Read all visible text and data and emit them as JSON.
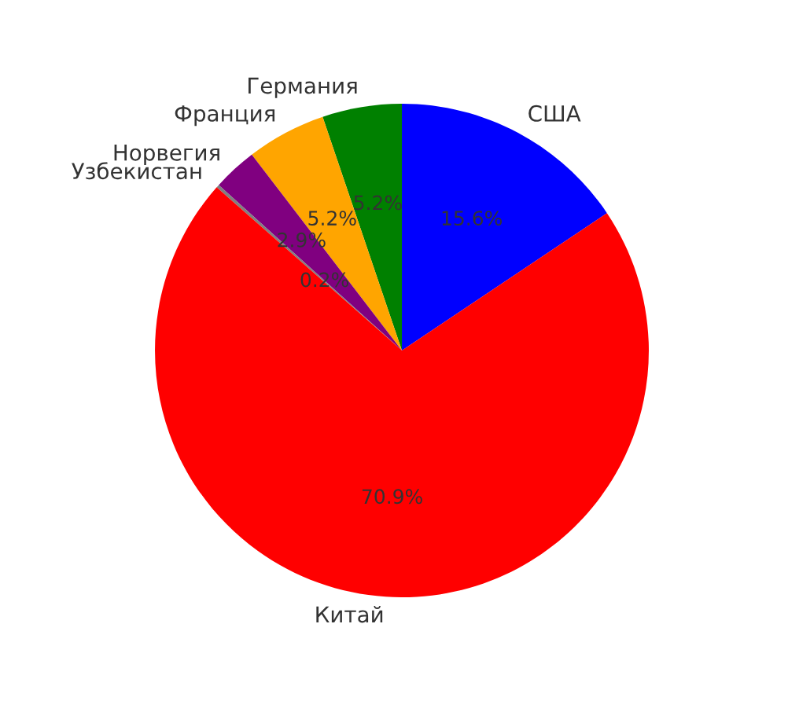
{
  "chart_data": {
    "type": "pie",
    "categories": [
      "США",
      "Германия",
      "Франция",
      "Норвегия",
      "Узбекистан",
      "Китай"
    ],
    "values": [
      15.6,
      5.2,
      5.2,
      2.9,
      0.2,
      70.9
    ],
    "colors": [
      "#0000ff",
      "#008000",
      "#ffa500",
      "#800080",
      "#808080",
      "#ff0000"
    ],
    "value_labels": [
      "15.6%",
      "5.2%",
      "5.2%",
      "2.9%",
      "0.2%",
      "70.9%"
    ]
  }
}
